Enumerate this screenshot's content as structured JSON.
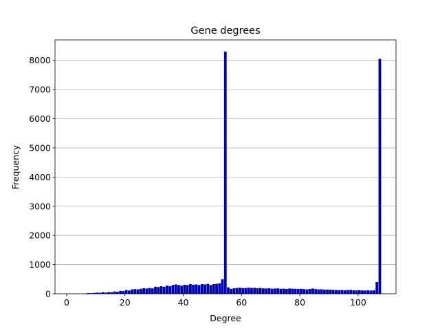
{
  "chart_data": {
    "type": "bar",
    "title": "Gene degrees",
    "xlabel": "Degree",
    "ylabel": "Frequency",
    "xlim": [
      -4,
      113
    ],
    "ylim": [
      0,
      8700
    ],
    "xticks": [
      0,
      20,
      40,
      60,
      80,
      100
    ],
    "yticks": [
      0,
      1000,
      2000,
      3000,
      4000,
      5000,
      6000,
      7000,
      8000
    ],
    "grid": "y",
    "bar_color": "#0000aa",
    "bin_width": 0.9,
    "bins_start": [
      0,
      1,
      2,
      3,
      4,
      5,
      6,
      7,
      8,
      9,
      10,
      11,
      12,
      13,
      14,
      15,
      16,
      17,
      18,
      19,
      20,
      21,
      22,
      23,
      24,
      25,
      26,
      27,
      28,
      29,
      30,
      31,
      32,
      33,
      34,
      35,
      36,
      37,
      38,
      39,
      40,
      41,
      42,
      43,
      44,
      45,
      46,
      47,
      48,
      49,
      50,
      51,
      52,
      53,
      54,
      55,
      56,
      57,
      58,
      59,
      60,
      61,
      62,
      63,
      64,
      65,
      66,
      67,
      68,
      69,
      70,
      71,
      72,
      73,
      74,
      75,
      76,
      77,
      78,
      79,
      80,
      81,
      82,
      83,
      84,
      85,
      86,
      87,
      88,
      89,
      90,
      91,
      92,
      93,
      94,
      95,
      96,
      97,
      98,
      99,
      100,
      101,
      102,
      103,
      104,
      105,
      106,
      107
    ],
    "values": [
      0,
      0,
      2,
      4,
      5,
      8,
      10,
      25,
      20,
      30,
      40,
      35,
      55,
      40,
      60,
      55,
      80,
      70,
      100,
      90,
      130,
      110,
      150,
      160,
      150,
      170,
      190,
      180,
      200,
      185,
      240,
      230,
      260,
      240,
      280,
      260,
      300,
      320,
      300,
      280,
      310,
      300,
      330,
      310,
      320,
      300,
      330,
      320,
      340,
      300,
      330,
      340,
      360,
      500,
      8300,
      220,
      170,
      190,
      200,
      210,
      195,
      200,
      210,
      200,
      205,
      190,
      200,
      185,
      180,
      190,
      175,
      180,
      185,
      170,
      175,
      165,
      180,
      175,
      170,
      165,
      170,
      160,
      150,
      165,
      180,
      160,
      150,
      155,
      140,
      145,
      140,
      135,
      130,
      125,
      130,
      120,
      130,
      135,
      120,
      115,
      125,
      115,
      110,
      120,
      110,
      120,
      400,
      8050
    ]
  }
}
